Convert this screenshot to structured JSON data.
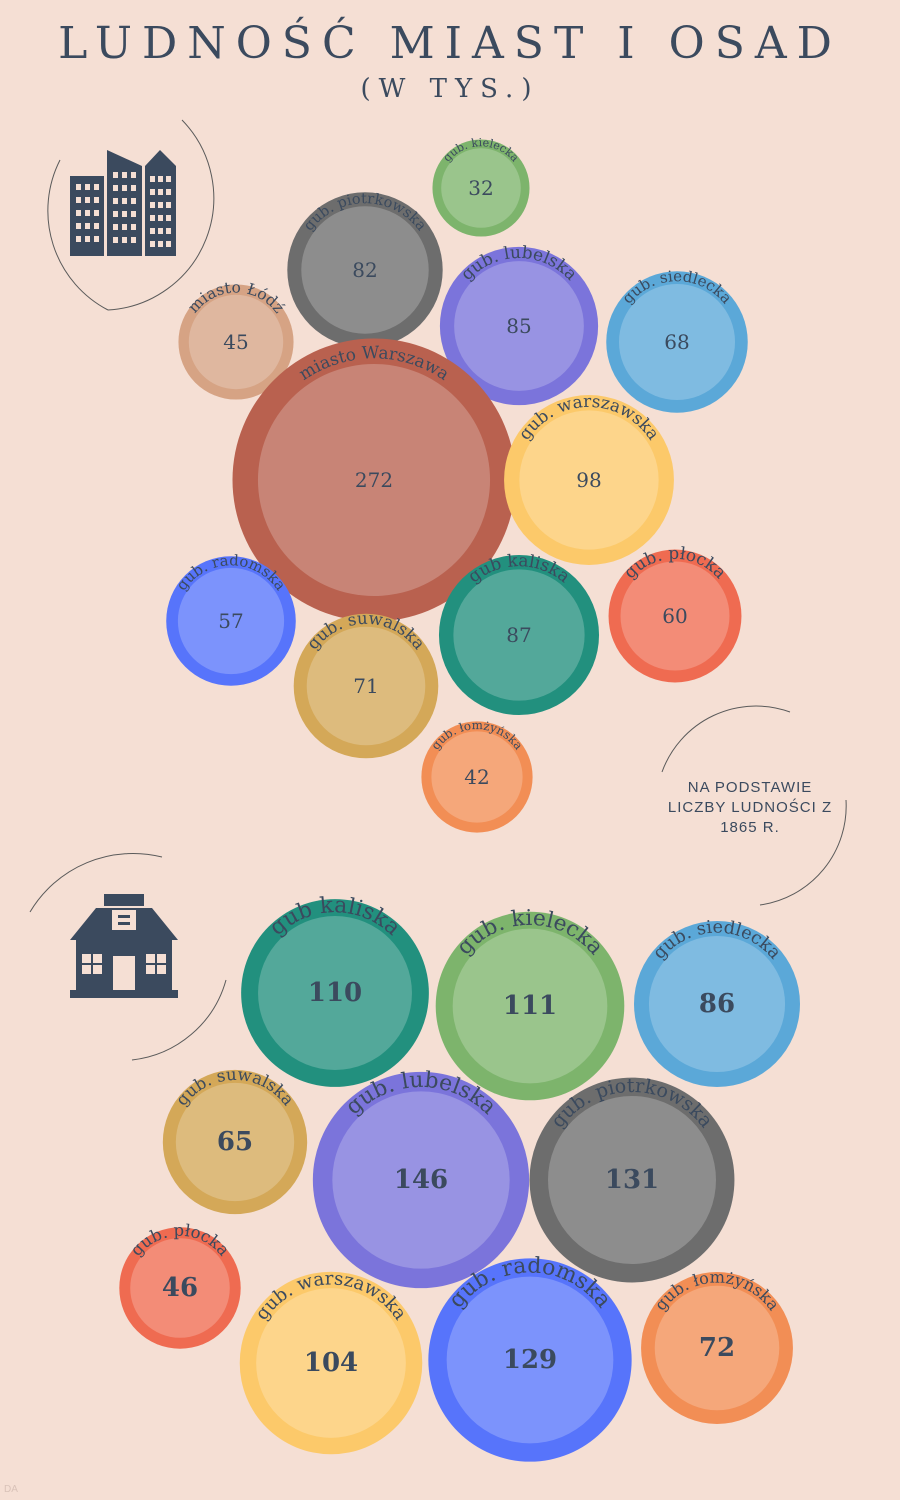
{
  "title": "LUDNOŚĆ MIAST I OSAD",
  "subtitle": "(W TYS.)",
  "note": "NA PODSTAWIE LICZBY LUDNOŚCI Z 1865 R.",
  "credit": "DA",
  "icons": [
    "city-buildings-icon",
    "house-icon"
  ],
  "chart_data": [
    {
      "type": "bubble",
      "unit": "tys.",
      "categories": [
        "gub. kielecka",
        "gub. piotrkowska",
        "miasto Łódź",
        "gub. lubelska",
        "gub. siedlecka",
        "miasto Warszawa",
        "gub. warszawska",
        "gub. radomska",
        "gub kaliska",
        "gub. płocka",
        "gub. suwalska",
        "gub. łomżyńska"
      ],
      "values": [
        32,
        82,
        45,
        85,
        68,
        272,
        98,
        57,
        87,
        60,
        71,
        42
      ],
      "colors": [
        "#7db46c",
        "#6d6d6d",
        "#d6a384",
        "#7b74db",
        "#5ba8d8",
        "#b9614f",
        "#fcc96a",
        "#5774fb",
        "#22907e",
        "#ef6b51",
        "#d4a858",
        "#f28e55"
      ]
    },
    {
      "type": "bubble",
      "unit": "tys.",
      "categories": [
        "gub kaliska",
        "gub. kielecka",
        "gub. siedlecka",
        "gub. suwalska",
        "gub. lubelska",
        "gub. piotrkowska",
        "gub. płocka",
        "gub. warszawska",
        "gub. radomska",
        "gub. łomżyńska"
      ],
      "values": [
        110,
        111,
        86,
        65,
        146,
        131,
        46,
        104,
        129,
        72
      ],
      "colors": [
        "#22907e",
        "#7db46c",
        "#5ba8d8",
        "#d4a858",
        "#7b74db",
        "#6d6d6d",
        "#ef6b51",
        "#fcc96a",
        "#5774fb",
        "#f28e55"
      ]
    }
  ]
}
